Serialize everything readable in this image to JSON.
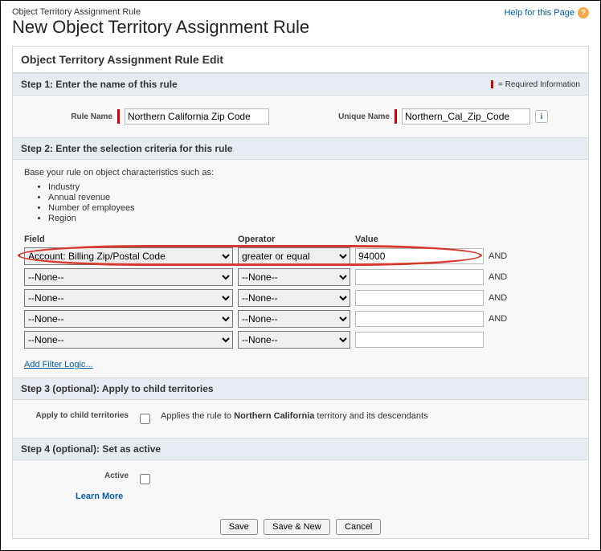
{
  "breadcrumb": "Object Territory Assignment Rule",
  "page_title": "New Object Territory Assignment Rule",
  "help_link": "Help for this Page",
  "panel_title": "Object Territory Assignment Rule Edit",
  "required_note": "= Required Information",
  "step1": {
    "title": "Step 1: Enter the name of this rule",
    "rule_name_label": "Rule Name",
    "rule_name_value": "Northern California Zip Code",
    "unique_name_label": "Unique Name",
    "unique_name_value": "Northern_Cal_Zip_Code"
  },
  "step2": {
    "title": "Step 2: Enter the selection criteria for this rule",
    "intro": "Base your rule on object characteristics such as:",
    "bullets": [
      "Industry",
      "Annual revenue",
      "Number of employees",
      "Region"
    ],
    "col_field": "Field",
    "col_operator": "Operator",
    "col_value": "Value",
    "and_label": "AND",
    "none_label": "--None--",
    "rows": [
      {
        "field": "Account: Billing Zip/Postal Code",
        "operator": "greater or equal",
        "value": "94000",
        "show_and": true,
        "highlight": true
      },
      {
        "field": "--None--",
        "operator": "--None--",
        "value": "",
        "show_and": true
      },
      {
        "field": "--None--",
        "operator": "--None--",
        "value": "",
        "show_and": true
      },
      {
        "field": "--None--",
        "operator": "--None--",
        "value": "",
        "show_and": true
      },
      {
        "field": "--None--",
        "operator": "--None--",
        "value": "",
        "show_and": false
      }
    ],
    "add_filter_logic": "Add Filter Logic...",
    "highlight_color": "#d63a2f"
  },
  "step3": {
    "title": "Step 3 (optional): Apply to child territories",
    "label": "Apply to child territories",
    "text_prefix": "Applies the rule to ",
    "territory_name": "Northern California",
    "text_suffix": " territory and its descendants",
    "checked": false
  },
  "step4": {
    "title": "Step 4 (optional): Set as active",
    "label": "Active",
    "checked": false,
    "learn_more": "Learn More"
  },
  "buttons": {
    "save": "Save",
    "save_new": "Save & New",
    "cancel": "Cancel"
  }
}
